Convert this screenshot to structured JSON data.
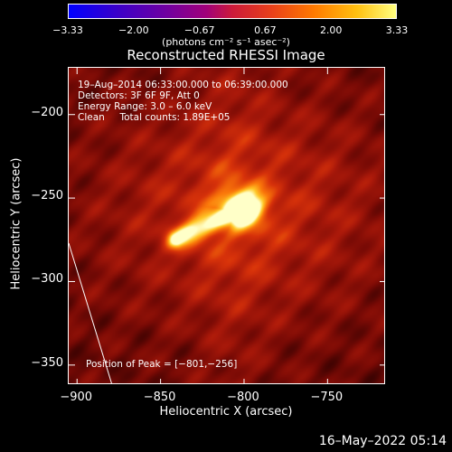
{
  "colorbar": {
    "ticks": [
      "−3.33",
      "−2.00",
      "−0.67",
      "0.67",
      "2.00",
      "3.33"
    ],
    "unit_label": "(photons cm⁻² s⁻¹ asec⁻²)"
  },
  "info": {
    "line1": "19–Aug–2014 06:33:00.000 to 06:39:00.000",
    "line2": "Detectors: 3F 6F 9F, Att 0",
    "line3": "Energy Range: 3.0 – 6.0 keV",
    "line4": "Clean     Total counts: 1.89E+05"
  },
  "peak_label": "Position of Peak = [−801,−256]",
  "footer_date": "16–May–2022 05:14",
  "chart_data": {
    "type": "heatmap",
    "title": "Reconstructed RHESSI Image",
    "xlabel": "Heliocentric X (arcsec)",
    "ylabel": "Heliocentric Y (arcsec)",
    "xlim": [
      -905,
      -715
    ],
    "ylim": [
      -362,
      -172
    ],
    "xticks": [
      -900,
      -850,
      -800,
      -750
    ],
    "yticks": [
      -200,
      -250,
      -300,
      -350
    ],
    "xtick_labels": [
      "−900",
      "−850",
      "−800",
      "−750"
    ],
    "ytick_labels": [
      "−200",
      "−250",
      "−300",
      "−350"
    ],
    "colorbar_range": [
      -3.33,
      3.33
    ],
    "peak": [
      -801,
      -256
    ],
    "source_core": {
      "x": -801,
      "y": -256
    },
    "source_tail": {
      "x_start": -801,
      "y_start": -256,
      "x_end": -840,
      "y_end": -275
    },
    "limb_line": {
      "x_start": -905,
      "y_start": -277,
      "x_end": -879,
      "y_end": -362
    },
    "grid": false
  }
}
